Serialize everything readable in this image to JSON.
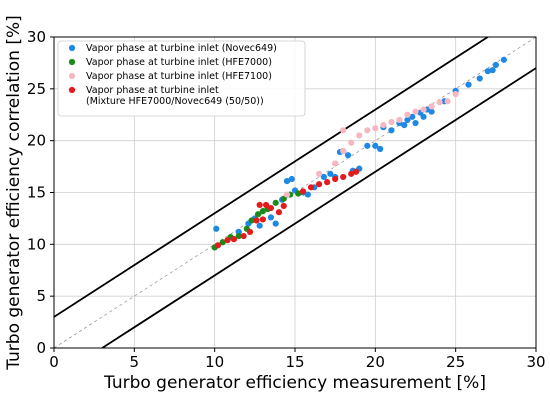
{
  "chart_data": {
    "type": "scatter",
    "xlabel": "Turbo generator efficiency measurement [%]",
    "ylabel": "Turbo generator efficiency correlation [%]",
    "xlim": [
      0,
      30
    ],
    "ylim": [
      0,
      30
    ],
    "xticks": [
      "0",
      "5",
      "10",
      "15",
      "20",
      "25",
      "30"
    ],
    "yticks": [
      "0",
      "5",
      "10",
      "15",
      "20",
      "25",
      "30"
    ],
    "grid": true,
    "legend_position": "top-left",
    "reference_lines": [
      {
        "kind": "identity",
        "style": "dashed",
        "color": "#999999",
        "points": [
          [
            0,
            0
          ],
          [
            30,
            30
          ]
        ]
      },
      {
        "kind": "upper-bound",
        "style": "solid",
        "color": "#000000",
        "points": [
          [
            0,
            3
          ],
          [
            27,
            30
          ]
        ]
      },
      {
        "kind": "lower-bound",
        "style": "solid",
        "color": "#000000",
        "points": [
          [
            3,
            0
          ],
          [
            30,
            27
          ]
        ]
      }
    ],
    "series": [
      {
        "name": "Vapor phase at turbine inlet (Novec649)",
        "color": "#1e88e5",
        "points": [
          [
            10.1,
            11.5
          ],
          [
            11.5,
            11.2
          ],
          [
            12.1,
            12.0
          ],
          [
            12.5,
            12.5
          ],
          [
            12.8,
            11.8
          ],
          [
            13.5,
            12.6
          ],
          [
            13.8,
            12.0
          ],
          [
            14.2,
            14.3
          ],
          [
            14.5,
            16.1
          ],
          [
            14.8,
            16.3
          ],
          [
            15.0,
            15.2
          ],
          [
            15.5,
            15.0
          ],
          [
            15.8,
            14.8
          ],
          [
            16.2,
            15.5
          ],
          [
            16.8,
            16.5
          ],
          [
            17.2,
            16.8
          ],
          [
            17.5,
            16.5
          ],
          [
            17.8,
            18.9
          ],
          [
            18.0,
            19.0
          ],
          [
            18.3,
            18.6
          ],
          [
            18.6,
            17.1
          ],
          [
            19.0,
            17.3
          ],
          [
            19.5,
            19.5
          ],
          [
            20.0,
            19.5
          ],
          [
            20.3,
            19.2
          ],
          [
            20.5,
            21.3
          ],
          [
            21.0,
            21.0
          ],
          [
            21.5,
            21.7
          ],
          [
            21.8,
            21.5
          ],
          [
            22.0,
            22.0
          ],
          [
            22.3,
            22.3
          ],
          [
            22.5,
            21.7
          ],
          [
            22.8,
            22.7
          ],
          [
            23.0,
            22.3
          ],
          [
            23.2,
            23.0
          ],
          [
            23.5,
            22.8
          ],
          [
            24.3,
            23.8
          ],
          [
            25.0,
            24.8
          ],
          [
            25.8,
            25.4
          ],
          [
            26.5,
            26.0
          ],
          [
            27.0,
            26.7
          ],
          [
            27.3,
            26.8
          ],
          [
            27.5,
            27.3
          ],
          [
            28.0,
            27.8
          ]
        ]
      },
      {
        "name": "Vapor phase at turbine inlet (HFE7000)",
        "color": "#1b8a1b",
        "points": [
          [
            10.0,
            9.7
          ],
          [
            10.5,
            10.2
          ],
          [
            11.0,
            10.7
          ],
          [
            11.5,
            10.8
          ],
          [
            12.0,
            11.5
          ],
          [
            12.3,
            12.3
          ],
          [
            12.7,
            12.9
          ],
          [
            13.0,
            13.2
          ],
          [
            13.3,
            13.4
          ],
          [
            13.8,
            14.0
          ],
          [
            14.3,
            14.4
          ],
          [
            14.7,
            14.8
          ],
          [
            15.2,
            14.9
          ]
        ]
      },
      {
        "name": "Vapor phase at turbine inlet (HFE7100)",
        "color": "#f7b6c2",
        "points": [
          [
            14.5,
            14.8
          ],
          [
            16.5,
            16.8
          ],
          [
            17.5,
            17.8
          ],
          [
            18.0,
            19.0
          ],
          [
            18.5,
            19.8
          ],
          [
            19.0,
            20.5
          ],
          [
            19.5,
            21.0
          ],
          [
            20.0,
            21.2
          ],
          [
            20.5,
            21.5
          ],
          [
            21.0,
            21.8
          ],
          [
            21.5,
            22.0
          ],
          [
            22.0,
            22.5
          ],
          [
            22.5,
            22.8
          ],
          [
            23.0,
            23.0
          ],
          [
            23.5,
            23.3
          ],
          [
            24.0,
            23.7
          ],
          [
            24.5,
            23.8
          ],
          [
            25.0,
            24.5
          ],
          [
            18.0,
            21.0
          ]
        ]
      },
      {
        "name": "Vapor phase at turbine inlet",
        "name_line2": "(Mixture HFE7000/Novec649 (50/50))",
        "color": "#e41a1c",
        "points": [
          [
            10.2,
            9.9
          ],
          [
            10.8,
            10.4
          ],
          [
            11.2,
            10.5
          ],
          [
            11.8,
            10.8
          ],
          [
            12.2,
            11.2
          ],
          [
            12.6,
            12.3
          ],
          [
            13.0,
            12.4
          ],
          [
            13.5,
            13.5
          ],
          [
            14.0,
            13.1
          ],
          [
            15.5,
            15.1
          ],
          [
            16.0,
            15.5
          ],
          [
            16.5,
            15.8
          ],
          [
            17.0,
            16.0
          ],
          [
            17.5,
            16.3
          ],
          [
            18.0,
            16.5
          ],
          [
            18.5,
            16.8
          ],
          [
            18.8,
            17.0
          ],
          [
            12.8,
            13.8
          ],
          [
            13.2,
            13.8
          ],
          [
            14.3,
            13.7
          ]
        ]
      }
    ]
  }
}
